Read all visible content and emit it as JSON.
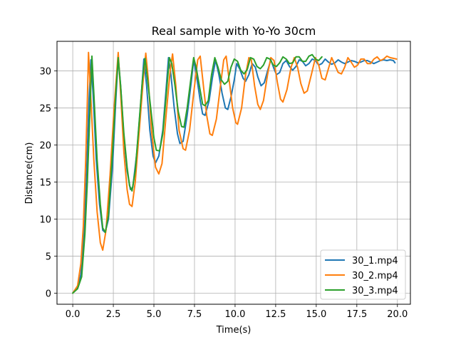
{
  "chart_data": {
    "type": "line",
    "title": "Real sample with Yo-Yo 30cm",
    "xlabel": "Time(s)",
    "ylabel": "Distance(cm)",
    "xlim": [
      -0.97,
      20.8
    ],
    "ylim": [
      -1.5,
      34.0
    ],
    "xticks": [
      0.0,
      2.5,
      5.0,
      7.5,
      10.0,
      12.5,
      15.0,
      17.5,
      20.0
    ],
    "xtick_labels": [
      "0.0",
      "2.5",
      "5.0",
      "7.5",
      "10.0",
      "12.5",
      "15.0",
      "17.5",
      "20.0"
    ],
    "yticks": [
      0,
      5,
      10,
      15,
      20,
      25,
      30
    ],
    "ytick_labels": [
      "0",
      "5",
      "10",
      "15",
      "20",
      "25",
      "30"
    ],
    "grid": true,
    "legend_position": "lower-right",
    "series": [
      {
        "name": "30_1.mp4",
        "color": "#1f77b4",
        "points": [
          [
            0,
            0
          ],
          [
            0.3,
            0.8
          ],
          [
            0.5,
            2.5
          ],
          [
            0.7,
            8
          ],
          [
            0.85,
            16
          ],
          [
            1.0,
            26
          ],
          [
            1.12,
            31.5
          ],
          [
            1.25,
            27
          ],
          [
            1.45,
            18
          ],
          [
            1.65,
            12
          ],
          [
            1.85,
            8.5
          ],
          [
            2.0,
            8.2
          ],
          [
            2.2,
            10
          ],
          [
            2.45,
            17
          ],
          [
            2.65,
            26
          ],
          [
            2.8,
            31.8
          ],
          [
            2.95,
            28
          ],
          [
            3.15,
            21
          ],
          [
            3.35,
            16.5
          ],
          [
            3.55,
            14
          ],
          [
            3.7,
            14.3
          ],
          [
            3.95,
            19
          ],
          [
            4.2,
            26
          ],
          [
            4.38,
            31.6
          ],
          [
            4.55,
            28
          ],
          [
            4.75,
            22
          ],
          [
            4.95,
            18.5
          ],
          [
            5.1,
            17.6
          ],
          [
            5.3,
            18.5
          ],
          [
            5.55,
            22
          ],
          [
            5.75,
            27.5
          ],
          [
            5.9,
            31.8
          ],
          [
            6.05,
            29.5
          ],
          [
            6.25,
            25
          ],
          [
            6.45,
            21.5
          ],
          [
            6.6,
            20.2
          ],
          [
            6.8,
            20.5
          ],
          [
            7.05,
            24
          ],
          [
            7.3,
            28.5
          ],
          [
            7.45,
            31.5
          ],
          [
            7.65,
            29
          ],
          [
            7.85,
            26
          ],
          [
            8.0,
            24.2
          ],
          [
            8.15,
            24
          ],
          [
            8.4,
            26
          ],
          [
            8.6,
            29
          ],
          [
            8.8,
            31.5
          ],
          [
            9.0,
            29.5
          ],
          [
            9.2,
            27
          ],
          [
            9.4,
            25
          ],
          [
            9.55,
            24.8
          ],
          [
            9.75,
            26.5
          ],
          [
            9.95,
            28.8
          ],
          [
            10.1,
            31
          ],
          [
            10.3,
            30.2
          ],
          [
            10.5,
            29
          ],
          [
            10.65,
            28.6
          ],
          [
            10.85,
            29.5
          ],
          [
            11.05,
            31
          ],
          [
            11.25,
            30.5
          ],
          [
            11.4,
            29.2
          ],
          [
            11.6,
            28
          ],
          [
            11.8,
            28.4
          ],
          [
            12.0,
            30
          ],
          [
            12.2,
            31.5
          ],
          [
            12.4,
            30.3
          ],
          [
            12.55,
            29.5
          ],
          [
            12.75,
            29.8
          ],
          [
            12.95,
            31
          ],
          [
            13.15,
            31.4
          ],
          [
            13.35,
            30.6
          ],
          [
            13.55,
            30.1
          ],
          [
            13.75,
            30.6
          ],
          [
            13.95,
            31.5
          ],
          [
            14.15,
            31.3
          ],
          [
            14.35,
            30.7
          ],
          [
            14.55,
            31
          ],
          [
            14.75,
            31.6
          ],
          [
            14.95,
            31.4
          ],
          [
            15.15,
            30.8
          ],
          [
            15.35,
            31
          ],
          [
            15.55,
            31.6
          ],
          [
            15.75,
            31.2
          ],
          [
            15.95,
            30.9
          ],
          [
            16.15,
            31.1
          ],
          [
            16.35,
            31.5
          ],
          [
            16.55,
            31.2
          ],
          [
            16.75,
            31
          ],
          [
            16.95,
            31.2
          ],
          [
            17.15,
            31.4
          ],
          [
            17.35,
            31.3
          ],
          [
            17.55,
            31.1
          ],
          [
            17.75,
            31.2
          ],
          [
            17.95,
            31.4
          ],
          [
            18.15,
            31.4
          ],
          [
            18.35,
            31.2
          ],
          [
            18.55,
            31.0
          ],
          [
            18.75,
            31.2
          ],
          [
            18.95,
            31.4
          ],
          [
            19.15,
            31.5
          ],
          [
            19.35,
            31.4
          ],
          [
            19.55,
            31.5
          ],
          [
            19.75,
            31.4
          ],
          [
            19.85,
            31.1
          ]
        ]
      },
      {
        "name": "30_2.mp4",
        "color": "#ff7f0e",
        "points": [
          [
            0,
            0
          ],
          [
            0.3,
            1
          ],
          [
            0.5,
            4
          ],
          [
            0.65,
            9
          ],
          [
            0.8,
            18
          ],
          [
            0.9,
            26
          ],
          [
            0.97,
            32.5
          ],
          [
            1.1,
            27
          ],
          [
            1.3,
            18
          ],
          [
            1.5,
            11
          ],
          [
            1.7,
            6.8
          ],
          [
            1.85,
            5.8
          ],
          [
            2.05,
            8.5
          ],
          [
            2.3,
            16
          ],
          [
            2.55,
            25
          ],
          [
            2.8,
            32.5
          ],
          [
            2.95,
            27
          ],
          [
            3.15,
            19
          ],
          [
            3.35,
            14
          ],
          [
            3.5,
            12
          ],
          [
            3.65,
            11.7
          ],
          [
            3.85,
            15
          ],
          [
            4.1,
            22
          ],
          [
            4.35,
            29
          ],
          [
            4.5,
            32.4
          ],
          [
            4.65,
            29
          ],
          [
            4.85,
            22
          ],
          [
            5.1,
            17
          ],
          [
            5.3,
            16.1
          ],
          [
            5.5,
            17.5
          ],
          [
            5.75,
            24
          ],
          [
            6.0,
            30
          ],
          [
            6.15,
            32.3
          ],
          [
            6.35,
            28
          ],
          [
            6.55,
            22
          ],
          [
            6.8,
            19.5
          ],
          [
            6.95,
            19.3
          ],
          [
            7.2,
            22
          ],
          [
            7.45,
            27
          ],
          [
            7.7,
            31.5
          ],
          [
            7.85,
            32
          ],
          [
            8.05,
            28
          ],
          [
            8.25,
            24
          ],
          [
            8.45,
            21.5
          ],
          [
            8.6,
            21.3
          ],
          [
            8.85,
            23.5
          ],
          [
            9.1,
            28
          ],
          [
            9.3,
            31.5
          ],
          [
            9.45,
            32
          ],
          [
            9.65,
            28.5
          ],
          [
            9.85,
            25
          ],
          [
            10.05,
            23
          ],
          [
            10.15,
            22.8
          ],
          [
            10.4,
            25
          ],
          [
            10.65,
            29.5
          ],
          [
            10.85,
            31.8
          ],
          [
            11.0,
            31.5
          ],
          [
            11.2,
            28
          ],
          [
            11.4,
            25.5
          ],
          [
            11.55,
            24.8
          ],
          [
            11.75,
            26
          ],
          [
            12.0,
            29.5
          ],
          [
            12.2,
            31.8
          ],
          [
            12.4,
            31.4
          ],
          [
            12.6,
            28.5
          ],
          [
            12.8,
            26.2
          ],
          [
            12.95,
            25.8
          ],
          [
            13.2,
            27.5
          ],
          [
            13.45,
            30.5
          ],
          [
            13.65,
            31.8
          ],
          [
            13.85,
            30.5
          ],
          [
            14.05,
            28.3
          ],
          [
            14.25,
            27
          ],
          [
            14.45,
            27.3
          ],
          [
            14.7,
            29.5
          ],
          [
            14.95,
            31.8
          ],
          [
            15.15,
            30.8
          ],
          [
            15.35,
            29
          ],
          [
            15.55,
            28.8
          ],
          [
            15.75,
            30.3
          ],
          [
            15.95,
            31.8
          ],
          [
            16.15,
            30.8
          ],
          [
            16.35,
            29.8
          ],
          [
            16.55,
            29.6
          ],
          [
            16.75,
            30.5
          ],
          [
            16.95,
            31.8
          ],
          [
            17.15,
            31.2
          ],
          [
            17.35,
            30.5
          ],
          [
            17.55,
            30.8
          ],
          [
            17.75,
            31.6
          ],
          [
            17.95,
            31.6
          ],
          [
            18.15,
            31.0
          ],
          [
            18.35,
            31.0
          ],
          [
            18.55,
            31.6
          ],
          [
            18.75,
            31.9
          ],
          [
            18.95,
            31.4
          ],
          [
            19.15,
            31.6
          ],
          [
            19.35,
            32.0
          ],
          [
            19.55,
            31.8
          ],
          [
            19.75,
            31.7
          ],
          [
            19.95,
            31.6
          ]
        ]
      },
      {
        "name": "30_3.mp4",
        "color": "#2ca02c",
        "points": [
          [
            0,
            0
          ],
          [
            0.3,
            0.6
          ],
          [
            0.55,
            2.2
          ],
          [
            0.75,
            8
          ],
          [
            0.9,
            15
          ],
          [
            1.05,
            24
          ],
          [
            1.18,
            32
          ],
          [
            1.3,
            27
          ],
          [
            1.5,
            18
          ],
          [
            1.7,
            12
          ],
          [
            1.85,
            8.8
          ],
          [
            2.0,
            8.2
          ],
          [
            2.2,
            10.5
          ],
          [
            2.45,
            19
          ],
          [
            2.65,
            27
          ],
          [
            2.8,
            31.8
          ],
          [
            2.95,
            28
          ],
          [
            3.15,
            21.5
          ],
          [
            3.35,
            17
          ],
          [
            3.5,
            14.5
          ],
          [
            3.65,
            13.8
          ],
          [
            3.85,
            16.5
          ],
          [
            4.05,
            22
          ],
          [
            4.3,
            29
          ],
          [
            4.45,
            31.7
          ],
          [
            4.6,
            29
          ],
          [
            4.8,
            25
          ],
          [
            5.0,
            21
          ],
          [
            5.15,
            19.3
          ],
          [
            5.35,
            19.2
          ],
          [
            5.55,
            21.5
          ],
          [
            5.75,
            26.5
          ],
          [
            5.95,
            31.8
          ],
          [
            6.1,
            31
          ],
          [
            6.3,
            28
          ],
          [
            6.5,
            24.5
          ],
          [
            6.7,
            22.5
          ],
          [
            6.85,
            22.4
          ],
          [
            7.05,
            25
          ],
          [
            7.25,
            28.5
          ],
          [
            7.45,
            31.8
          ],
          [
            7.6,
            30.5
          ],
          [
            7.8,
            28
          ],
          [
            8.0,
            25.5
          ],
          [
            8.15,
            25.3
          ],
          [
            8.35,
            26
          ],
          [
            8.55,
            29.5
          ],
          [
            8.75,
            31.8
          ],
          [
            8.95,
            30.5
          ],
          [
            9.15,
            28.8
          ],
          [
            9.35,
            28.2
          ],
          [
            9.55,
            28.6
          ],
          [
            9.75,
            30.5
          ],
          [
            9.95,
            31.6
          ],
          [
            10.15,
            31.3
          ],
          [
            10.35,
            30.1
          ],
          [
            10.55,
            29.6
          ],
          [
            10.75,
            30.2
          ],
          [
            10.95,
            31.8
          ],
          [
            11.15,
            31.6
          ],
          [
            11.35,
            30.6
          ],
          [
            11.55,
            30.3
          ],
          [
            11.75,
            30.8
          ],
          [
            11.95,
            31.8
          ],
          [
            12.15,
            31.6
          ],
          [
            12.35,
            30.8
          ],
          [
            12.55,
            30.6
          ],
          [
            12.75,
            31.1
          ],
          [
            12.95,
            31.9
          ],
          [
            13.15,
            31.6
          ],
          [
            13.35,
            31.0
          ],
          [
            13.55,
            31.1
          ],
          [
            13.75,
            31.9
          ],
          [
            13.95,
            31.9
          ],
          [
            14.15,
            31.3
          ],
          [
            14.35,
            31.3
          ],
          [
            14.55,
            32.0
          ],
          [
            14.75,
            32.2
          ],
          [
            14.95,
            31.6
          ],
          [
            15.15,
            31.4
          ],
          [
            15.35,
            31.9
          ]
        ]
      }
    ]
  }
}
